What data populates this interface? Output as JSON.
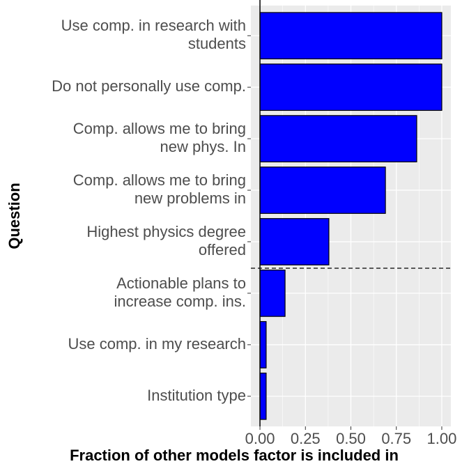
{
  "chart_data": {
    "type": "bar",
    "orientation": "horizontal",
    "xlabel": "Fraction of other models factor is included in",
    "ylabel": "Question",
    "categories": [
      "Use comp. in research with\nstudents",
      "Do not personally use comp.",
      "Comp. allows me to bring\nnew phys. In",
      "Comp. allows me to bring\nnew problems in",
      "Highest physics degree\noffered",
      "Actionable plans to\nincrease comp. ins.",
      "Use comp. in my research",
      "Institution type"
    ],
    "values": [
      1.0,
      1.0,
      0.862,
      0.69,
      0.379,
      0.138,
      0.034,
      0.034
    ],
    "color": "#0000ff",
    "xlim": [
      -0.05,
      1.05
    ],
    "xticks": [
      {
        "value": 0,
        "label": "0.00"
      },
      {
        "value": 0.25,
        "label": "0.25"
      },
      {
        "value": 0.5,
        "label": "0.50"
      },
      {
        "value": 0.75,
        "label": "0.75"
      },
      {
        "value": 1,
        "label": "1.00"
      }
    ],
    "grid": true
  }
}
